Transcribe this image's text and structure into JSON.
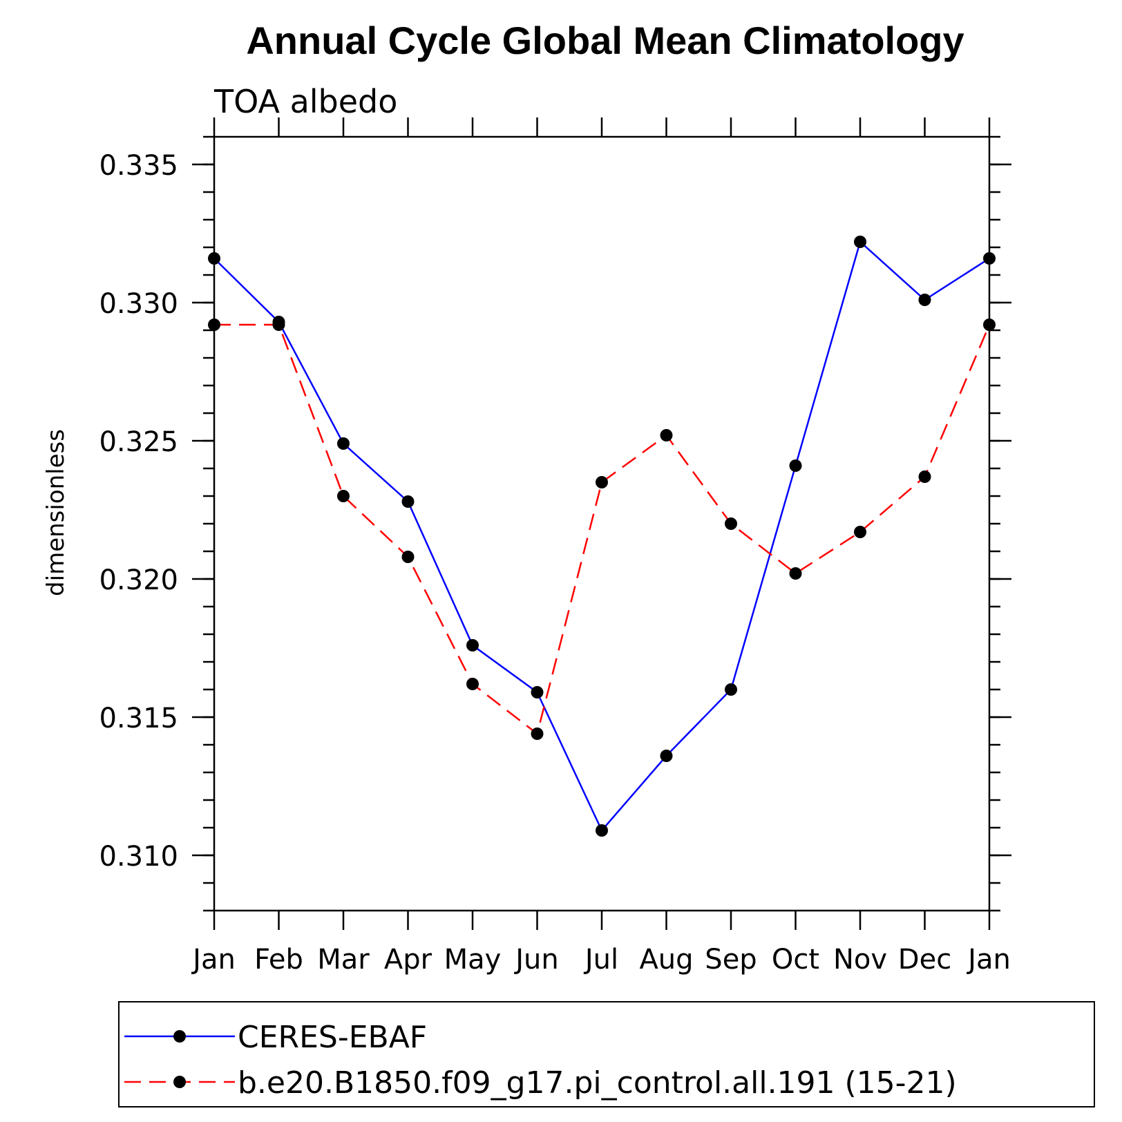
{
  "chart_data": {
    "type": "line",
    "title": "Annual Cycle Global Mean Climatology",
    "subtitle": "TOA albedo",
    "xlabel": "",
    "ylabel": "dimensionless",
    "categories": [
      "Jan",
      "Feb",
      "Mar",
      "Apr",
      "May",
      "Jun",
      "Jul",
      "Aug",
      "Sep",
      "Oct",
      "Nov",
      "Dec",
      "Jan"
    ],
    "ylim": [
      0.308,
      0.336
    ],
    "yticks": [
      0.31,
      0.315,
      0.32,
      0.325,
      0.33,
      0.335
    ],
    "ytick_labels": [
      "0.310",
      "0.315",
      "0.320",
      "0.325",
      "0.330",
      "0.335"
    ],
    "grid": false,
    "legend_position": "bottom",
    "series": [
      {
        "name": "CERES-EBAF",
        "color": "#0000ff",
        "linestyle": "solid",
        "marker": "filled-circle",
        "values": [
          0.3316,
          0.3293,
          0.3249,
          0.3228,
          0.3176,
          0.3159,
          0.3109,
          0.3136,
          0.316,
          0.3241,
          0.3322,
          0.3301,
          0.3316
        ]
      },
      {
        "name": "b.e20.B1850.f09_g17.pi_control.all.191 (15-21)",
        "color": "#ff0000",
        "linestyle": "dashed",
        "marker": "filled-circle",
        "values": [
          0.3292,
          0.3292,
          0.323,
          0.3208,
          0.3162,
          0.3144,
          0.3235,
          0.3252,
          0.322,
          0.3202,
          0.3217,
          0.3237,
          0.3292
        ]
      }
    ]
  }
}
